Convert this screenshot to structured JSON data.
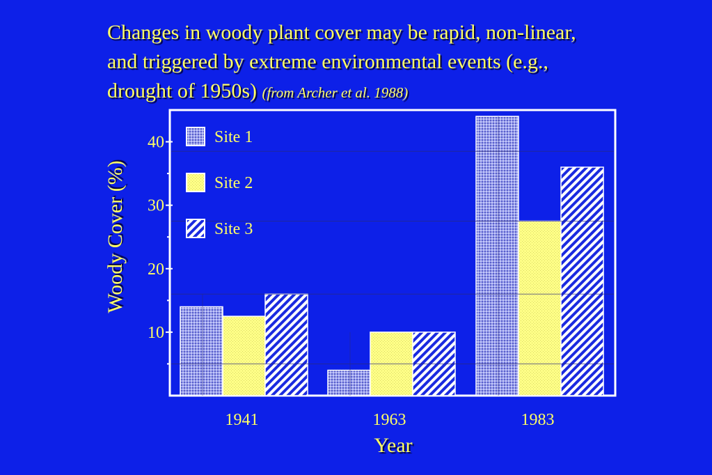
{
  "slide": {
    "title_line1": "Changes in woody plant cover may be rapid, non-linear,",
    "title_line2": "and triggered by extreme environmental events (e.g.,",
    "title_line3": " drought of 1950s)",
    "title_citation": "(from Archer et al. 1988)"
  },
  "colors": {
    "background": "#0d20e8",
    "text": "#ffff66",
    "axes": "#ffffff",
    "site1": "#8a8ee6",
    "site2": "#ffff80",
    "site3_hatch": "#ffffff"
  },
  "chart_data": {
    "type": "bar",
    "title": "",
    "xlabel": "Year",
    "ylabel": "Woody Cover (%)",
    "categories": [
      "1941",
      "1963",
      "1983"
    ],
    "yticks": [
      10,
      20,
      30,
      40
    ],
    "ylim": [
      0,
      45
    ],
    "legend_position": "top-left",
    "series": [
      {
        "name": "Site 1",
        "values": [
          14,
          4,
          44
        ],
        "pattern": "dotted-grid"
      },
      {
        "name": "Site 2",
        "values": [
          12.5,
          10,
          27.5
        ],
        "pattern": "dotted-yellow"
      },
      {
        "name": "Site 3",
        "values": [
          16,
          10,
          36
        ],
        "pattern": "diagonal-hatch"
      }
    ]
  }
}
